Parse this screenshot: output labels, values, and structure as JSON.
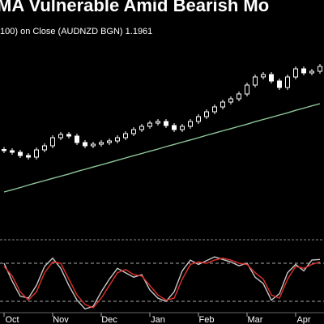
{
  "chart_data": [
    {
      "type": "candlestick",
      "title": "MA Vulnerable Amid Bearish Mo",
      "subtitle": "100)  on Close (AUDNZD BGN) 1.1961",
      "categories": [
        null,
        "Oct",
        null,
        null,
        null,
        null,
        null,
        "Nov",
        null,
        null,
        null,
        null,
        null,
        "Dec",
        null,
        null,
        null,
        null,
        null,
        "Jan",
        null,
        null,
        null,
        null,
        null,
        "Feb",
        null,
        null,
        null,
        null,
        null,
        "Mar",
        null,
        null,
        null,
        null,
        null,
        "Apr",
        null,
        null
      ],
      "open": [
        1.1735,
        1.1729,
        1.1721,
        1.1705,
        1.1697,
        1.1733,
        1.1753,
        1.1793,
        1.1809,
        1.1801,
        1.1769,
        1.1753,
        1.1761,
        1.1769,
        1.1777,
        1.1793,
        1.1813,
        1.1833,
        1.1849,
        1.1865,
        1.1873,
        1.1853,
        1.1833,
        1.1849,
        1.1873,
        1.1897,
        1.1921,
        1.1945,
        1.1969,
        1.1985,
        1.2009,
        1.2053,
        1.2093,
        1.2105,
        1.2073,
        1.2041,
        1.2093,
        1.2133,
        1.2113,
        1.2121
      ],
      "high": [
        1.1747,
        1.1741,
        1.1733,
        1.1717,
        1.1745,
        1.1765,
        1.1805,
        1.1821,
        1.1821,
        1.1813,
        1.1781,
        1.1773,
        1.1781,
        1.1789,
        1.1805,
        1.1825,
        1.1845,
        1.1861,
        1.1877,
        1.1885,
        1.1885,
        1.1865,
        1.1861,
        1.1885,
        1.1909,
        1.1933,
        1.1957,
        1.1981,
        1.1997,
        1.2021,
        1.2065,
        1.2105,
        1.2117,
        1.2117,
        1.2085,
        1.2105,
        1.2145,
        1.2145,
        1.2133,
        1.2157
      ],
      "low": [
        1.1717,
        1.1709,
        1.1693,
        1.1685,
        1.1685,
        1.1721,
        1.1741,
        1.1781,
        1.1789,
        1.1757,
        1.1741,
        1.1741,
        1.1749,
        1.1757,
        1.1765,
        1.1781,
        1.1801,
        1.1821,
        1.1837,
        1.1853,
        1.1841,
        1.1821,
        1.1821,
        1.1837,
        1.1861,
        1.1885,
        1.1909,
        1.1933,
        1.1957,
        1.1973,
        1.1997,
        1.2041,
        1.2081,
        1.2061,
        1.2029,
        1.2029,
        1.2081,
        1.2101,
        1.2101,
        1.2109
      ],
      "close": [
        1.1729,
        1.1721,
        1.1705,
        1.1697,
        1.1733,
        1.1753,
        1.1793,
        1.1809,
        1.1801,
        1.1769,
        1.1753,
        1.1761,
        1.1769,
        1.1777,
        1.1793,
        1.1813,
        1.1833,
        1.1849,
        1.1865,
        1.1873,
        1.1853,
        1.1833,
        1.1849,
        1.1873,
        1.1897,
        1.1921,
        1.1945,
        1.1969,
        1.1985,
        1.2009,
        1.2053,
        1.2093,
        1.2105,
        1.2073,
        1.2041,
        1.2093,
        1.2133,
        1.2113,
        1.2121,
        1.2145
      ],
      "color": "#ffffff",
      "series": [
        {
          "color": "#8fc79a",
          "values": [
            1.1525,
            1.1536,
            1.1547,
            1.1559,
            1.157,
            1.1581,
            1.1592,
            1.1603,
            1.1614,
            1.1626,
            1.1637,
            1.1648,
            1.1659,
            1.167,
            1.1682,
            1.1693,
            1.1704,
            1.1715,
            1.1726,
            1.1737,
            1.1749,
            1.176,
            1.1771,
            1.1782,
            1.1793,
            1.1805,
            1.1816,
            1.1827,
            1.1838,
            1.1849,
            1.186,
            1.1872,
            1.1883,
            1.1894,
            1.1905,
            1.1916,
            1.1928,
            1.1939,
            1.195,
            1.1961
          ]
        }
      ],
      "ylim": [
        1.1313,
        1.2293
      ]
    },
    {
      "type": "line",
      "series": [
        {
          "color": "#c8c8c8",
          "values": [
            80,
            52,
            28,
            25,
            45,
            75,
            88,
            72,
            45,
            22,
            8,
            12,
            35,
            55,
            72,
            65,
            58,
            62,
            38,
            25,
            20,
            35,
            68,
            85,
            78,
            84,
            90,
            86,
            82,
            76,
            80,
            58,
            48,
            22,
            32,
            65,
            78,
            68,
            85,
            86
          ]
        },
        {
          "color": "#e0302a",
          "values": [
            75,
            60,
            35,
            22,
            35,
            65,
            82,
            80,
            55,
            30,
            15,
            10,
            25,
            45,
            65,
            70,
            62,
            60,
            45,
            30,
            22,
            25,
            55,
            78,
            82,
            80,
            85,
            88,
            85,
            80,
            78,
            65,
            55,
            30,
            25,
            55,
            75,
            72,
            78,
            82
          ]
        }
      ],
      "levels": [
        80,
        20
      ],
      "ylim": [
        0,
        100
      ]
    }
  ]
}
